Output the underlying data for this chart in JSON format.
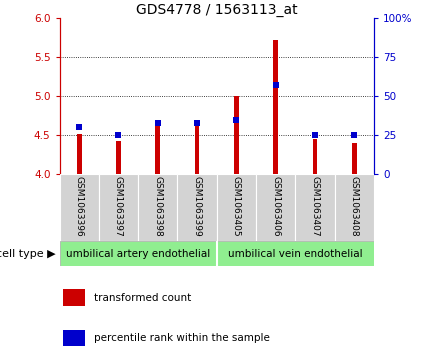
{
  "title": "GDS4778 / 1563113_at",
  "samples": [
    "GSM1063396",
    "GSM1063397",
    "GSM1063398",
    "GSM1063399",
    "GSM1063405",
    "GSM1063406",
    "GSM1063407",
    "GSM1063408"
  ],
  "red_bar_tops": [
    4.52,
    4.42,
    4.7,
    4.7,
    5.0,
    5.72,
    4.45,
    4.4
  ],
  "red_bar_bottom": 4.0,
  "blue_percentiles": [
    30,
    25,
    33,
    33,
    35,
    57,
    25,
    25
  ],
  "ylim_left": [
    4.0,
    6.0
  ],
  "ylim_right": [
    0,
    100
  ],
  "yticks_left": [
    4.0,
    4.5,
    5.0,
    5.5,
    6.0
  ],
  "yticks_right": [
    0,
    25,
    50,
    75,
    100
  ],
  "ytick_labels_right": [
    "0",
    "25",
    "50",
    "75",
    "100%"
  ],
  "left_axis_color": "#cc0000",
  "right_axis_color": "#0000cc",
  "bar_color": "#cc0000",
  "square_color": "#0000cc",
  "bar_width": 0.12,
  "cell_type_groups": [
    {
      "label": "umbilical artery endothelial",
      "start": 0,
      "end": 3
    },
    {
      "label": "umbilical vein endothelial",
      "start": 4,
      "end": 7
    }
  ],
  "cell_type_label": "cell type",
  "legend_bar_label": "transformed count",
  "legend_square_label": "percentile rank within the sample",
  "bg_color": "#ffffff",
  "tick_bg_color": "#d3d3d3",
  "group_bg_color": "#90ee90"
}
